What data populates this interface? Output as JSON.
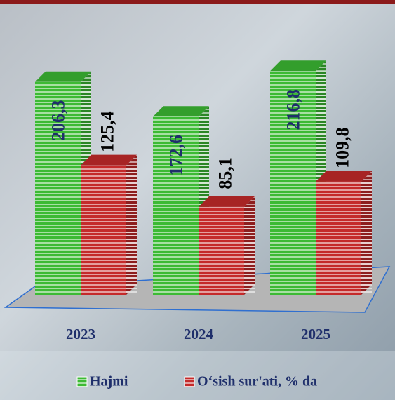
{
  "chart_data": {
    "type": "bar3d",
    "categories": [
      "2023",
      "2024",
      "2025"
    ],
    "series": [
      {
        "name": "Hajmi",
        "color": "#3cba34",
        "values": [
          206.3,
          172.6,
          216.8
        ],
        "value_labels": [
          "206,3",
          "172,6",
          "216,8"
        ],
        "label_color": "#1f2f6b"
      },
      {
        "name": "O‘sish sur'ati, % da",
        "color": "#c42a2a",
        "values": [
          125.4,
          85.1,
          109.8
        ],
        "value_labels": [
          "125,4",
          "85,1",
          "109,8"
        ],
        "label_color": "#000000"
      }
    ]
  }
}
